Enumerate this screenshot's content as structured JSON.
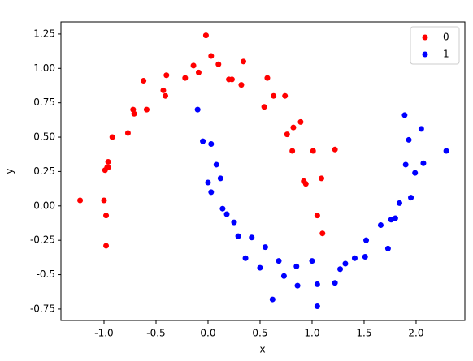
{
  "chart_data": {
    "type": "scatter",
    "xlabel": "x",
    "ylabel": "y",
    "xlim": [
      -1.414,
      2.469
    ],
    "ylim": [
      -0.833,
      1.338
    ],
    "xticks": [
      {
        "value": -1,
        "label": "-1.0"
      },
      -0.5,
      {
        "value": 0,
        "label": "0.0"
      },
      0.5,
      {
        "value": 1,
        "label": "1.0"
      },
      1.5,
      {
        "value": 2,
        "label": "2.0"
      }
    ],
    "yticks": [
      -0.75,
      -0.5,
      -0.25,
      {
        "value": 0,
        "label": "0.00"
      },
      0.25,
      {
        "value": 0.5,
        "label": "0.50"
      },
      0.75,
      {
        "value": 1,
        "label": "1.00"
      },
      1.25
    ],
    "legend": "upper right",
    "series": [
      {
        "name": "0",
        "color": "#ff0000",
        "x": [
          1.05,
          0.92,
          1.09,
          0.94,
          1.01,
          0.81,
          0.89,
          0.76,
          0.82,
          0.63,
          0.74,
          0.54,
          0.57,
          0.32,
          0.34,
          0.2,
          0.23,
          0.03,
          0.1,
          -0.09,
          -0.14,
          -0.22,
          -0.4,
          -0.41,
          -0.43,
          -0.62,
          -0.59,
          -0.72,
          -0.71,
          -0.92,
          -0.77,
          -0.96,
          -0.99,
          -0.96,
          -0.97,
          -1.0,
          -0.98,
          -1.23,
          -0.98,
          1.22,
          -0.02,
          1.1
        ],
        "values": [
          -0.07,
          0.18,
          0.2,
          0.16,
          0.4,
          0.4,
          0.61,
          0.52,
          0.57,
          0.8,
          0.8,
          0.72,
          0.93,
          0.88,
          1.05,
          0.92,
          0.92,
          1.09,
          1.03,
          0.97,
          1.02,
          0.93,
          0.95,
          0.8,
          0.84,
          0.91,
          0.7,
          0.7,
          0.67,
          0.5,
          0.53,
          0.32,
          0.26,
          0.28,
          0.28,
          0.04,
          -0.07,
          0.04,
          -0.29,
          0.41,
          1.24,
          -0.2
        ]
      },
      {
        "name": "1",
        "color": "#0000ff",
        "x": [
          0.03,
          -0.05,
          0.08,
          0.0,
          0.12,
          0.03,
          0.18,
          0.14,
          0.29,
          0.25,
          0.42,
          0.36,
          0.55,
          0.5,
          0.73,
          0.68,
          0.86,
          0.85,
          1.05,
          1.0,
          1.27,
          1.22,
          1.41,
          1.32,
          1.52,
          1.51,
          1.73,
          1.66,
          1.8,
          1.76,
          1.95,
          1.84,
          1.99,
          1.9,
          2.07,
          1.93,
          2.05,
          -0.1,
          2.29,
          1.05,
          1.89,
          0.62
        ],
        "values": [
          0.45,
          0.47,
          0.3,
          0.17,
          0.2,
          0.1,
          -0.06,
          -0.02,
          -0.22,
          -0.12,
          -0.23,
          -0.38,
          -0.3,
          -0.45,
          -0.51,
          -0.4,
          -0.58,
          -0.44,
          -0.57,
          -0.4,
          -0.46,
          -0.56,
          -0.38,
          -0.42,
          -0.25,
          -0.37,
          -0.31,
          -0.14,
          -0.09,
          -0.1,
          0.06,
          0.02,
          0.24,
          0.3,
          0.31,
          0.48,
          0.56,
          0.7,
          0.4,
          -0.73,
          0.66,
          -0.68
        ]
      }
    ]
  }
}
